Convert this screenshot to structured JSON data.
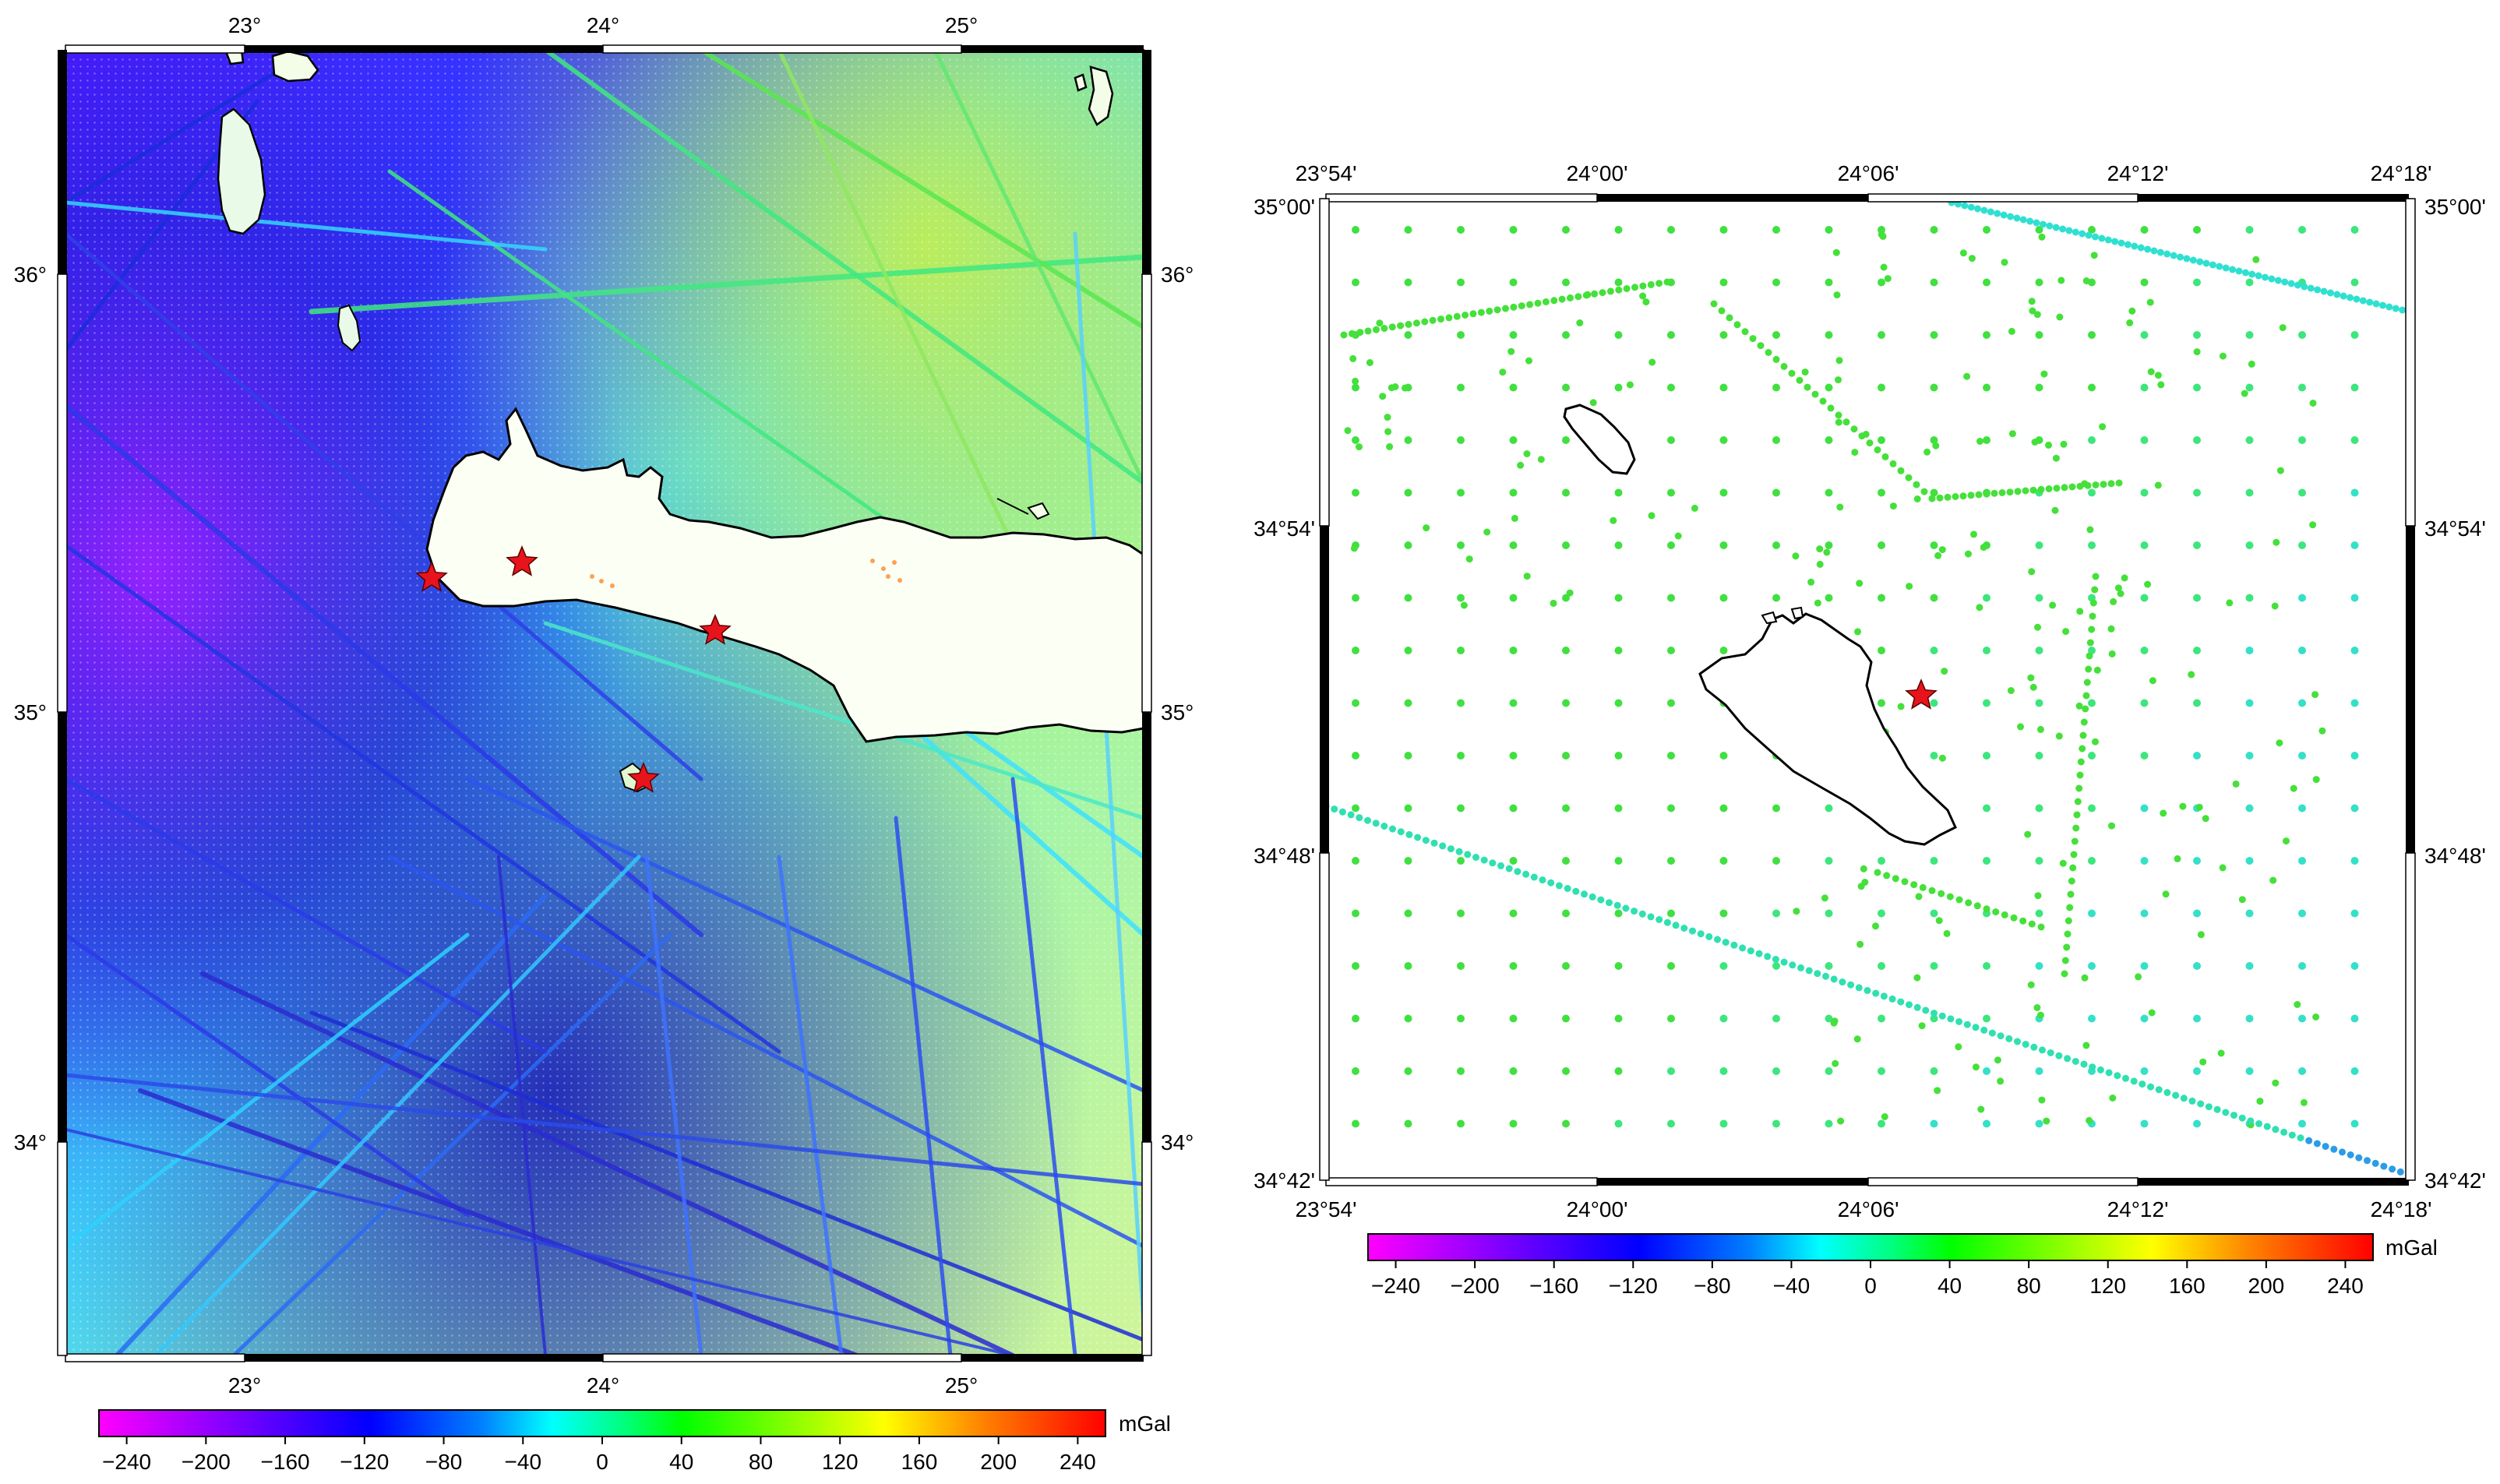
{
  "left_map": {
    "lon_labels": [
      "23°",
      "24°",
      "25°"
    ],
    "lat_labels": [
      "36°",
      "35°",
      "34°"
    ]
  },
  "right_map": {
    "lon_labels": [
      "23°54'",
      "24°00'",
      "24°06'",
      "24°12'",
      "24°18'"
    ],
    "lat_labels": [
      "35°00'",
      "34°54'",
      "34°48'",
      "34°42'"
    ]
  },
  "left_colorbar": {
    "unit": "mGal",
    "tick_labels": [
      "−240",
      "−200",
      "−160",
      "−120",
      "−80",
      "−40",
      "0",
      "40",
      "80",
      "120",
      "160",
      "200",
      "240"
    ]
  },
  "right_colorbar": {
    "unit": "mGal",
    "tick_labels": [
      "−240",
      "−200",
      "−160",
      "−120",
      "−80",
      "−40",
      "0",
      "40",
      "80",
      "120",
      "160",
      "200",
      "240"
    ]
  },
  "colors": {
    "scale": [
      "#ff00ff",
      "#8000ff",
      "#0000ff",
      "#0080ff",
      "#00ffff",
      "#00ff80",
      "#00ff00",
      "#80ff00",
      "#ffff00",
      "#ff8000",
      "#ff0000"
    ],
    "star": "#e8141b",
    "coast": "#000000"
  }
}
